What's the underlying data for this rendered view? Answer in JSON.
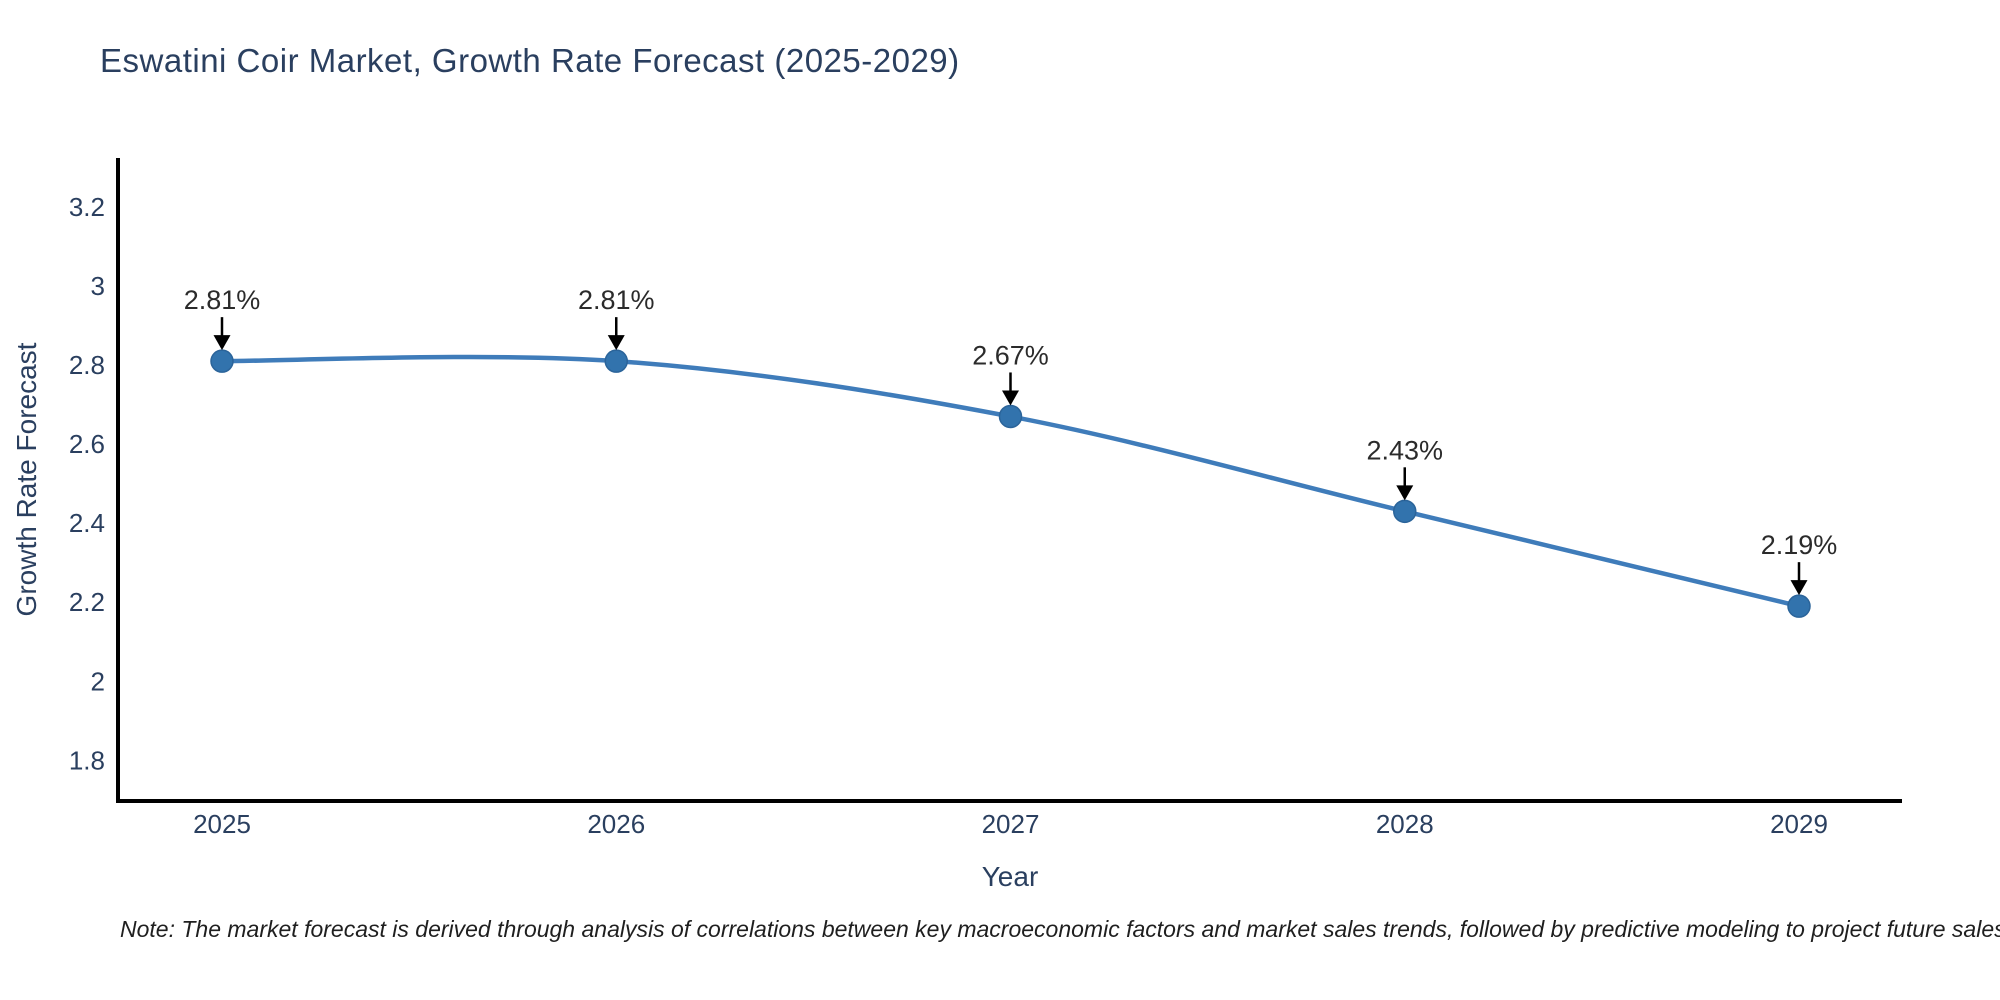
{
  "title": "Eswatini Coir Market, Growth Rate Forecast (2025-2029)",
  "note": "Note: The market forecast is derived through analysis of correlations between key macroeconomic factors and market sales trends, followed by predictive modeling to project future sales",
  "colors": {
    "title_text": "#2a3f5f",
    "axis_line": "#000000",
    "tick_text": "#2a3f5f",
    "axis_title_text": "#2a3f5f",
    "line": "#3f7cba",
    "marker_fill": "#3273ad",
    "marker_edge": "#2b649a",
    "annotation_text": "#2b2b2b",
    "annotation_arrow": "#000000",
    "background": "#ffffff"
  },
  "chart_data": {
    "type": "line",
    "title": "Eswatini Coir Market, Growth Rate Forecast (2025-2029)",
    "categories": [
      "2025",
      "2026",
      "2027",
      "2028",
      "2029"
    ],
    "series": [
      {
        "name": "Growth Rate Forecast",
        "values": [
          2.81,
          2.81,
          2.67,
          2.43,
          2.19
        ],
        "point_labels": [
          "2.81%",
          "2.81%",
          "2.67%",
          "2.43%",
          "2.19%"
        ]
      }
    ],
    "xlabel": "Year",
    "ylabel": "Growth Rate Forecast",
    "ylim": [
      1.697,
      3.324
    ],
    "yticks": [
      3.2,
      3.0,
      2.8,
      2.6,
      2.4,
      2.2,
      2.0,
      1.8
    ],
    "ytick_labels": [
      "3.2",
      "3",
      "2.8",
      "2.6",
      "2.4",
      "2.2",
      "2",
      "1.8"
    ],
    "line_shape": "spline",
    "grid": false,
    "legend": "none",
    "markers": true
  }
}
